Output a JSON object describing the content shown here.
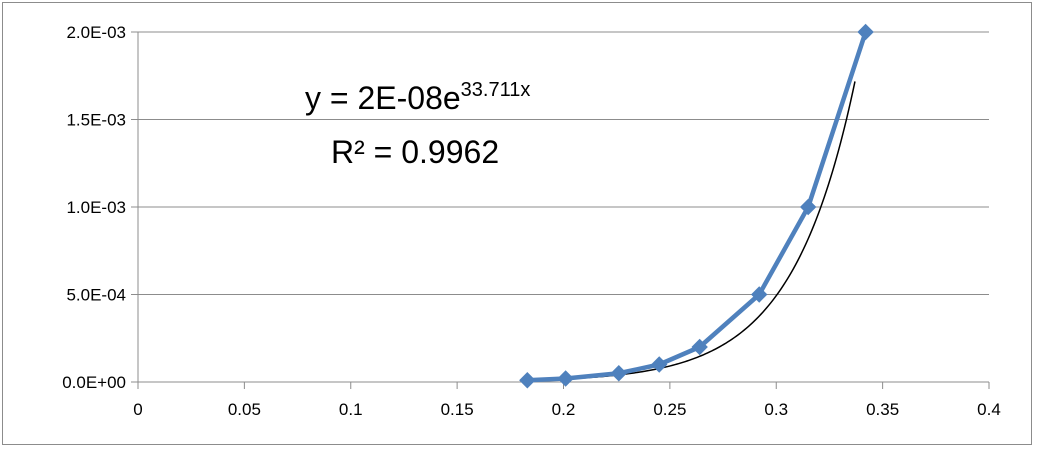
{
  "chart_data": {
    "type": "scatter",
    "title": "",
    "xlabel": "",
    "ylabel": "",
    "xlim": [
      0,
      0.4
    ],
    "ylim": [
      0,
      0.002
    ],
    "grid": "horizontal",
    "legend": "none",
    "x_ticks": [
      "0",
      "0.05",
      "0.1",
      "0.15",
      "0.2",
      "0.25",
      "0.3",
      "0.35",
      "0.4"
    ],
    "y_ticks": [
      "0.0E+00",
      "5.0E-04",
      "1.0E-03",
      "1.5E-03",
      "2.0E-03"
    ],
    "series": [
      {
        "color": "#4f81bd",
        "marker": "diamond",
        "line": true,
        "points": [
          {
            "x": 0.183,
            "y": 1e-05
          },
          {
            "x": 0.201,
            "y": 2e-05
          },
          {
            "x": 0.226,
            "y": 5e-05
          },
          {
            "x": 0.245,
            "y": 0.0001
          },
          {
            "x": 0.264,
            "y": 0.0002
          },
          {
            "x": 0.292,
            "y": 0.0005
          },
          {
            "x": 0.315,
            "y": 0.001
          },
          {
            "x": 0.342,
            "y": 0.002
          }
        ]
      }
    ],
    "trendline": {
      "type": "exponential",
      "a": 2e-08,
      "b": 33.711,
      "color": "#000000",
      "x_range": [
        0.183,
        0.337
      ]
    },
    "annotation": {
      "equation_base": "y = 2E-08e",
      "equation_exponent": "33.711x",
      "r_squared": "R² = 0.9962"
    }
  }
}
